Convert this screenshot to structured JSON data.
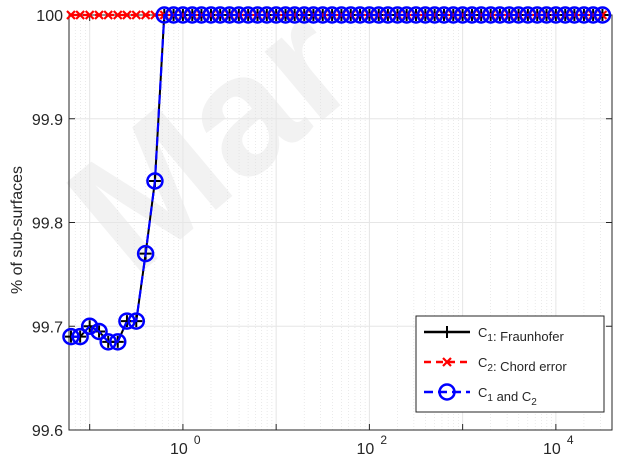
{
  "chart_data": {
    "type": "line",
    "ylabel": "% of sub-surfaces",
    "xscale": "log",
    "xlim": [
      0.06,
      40000
    ],
    "ylim": [
      99.6,
      100.0
    ],
    "yticks": [
      "99.6",
      "99.7",
      "99.8",
      "99.9",
      "100"
    ],
    "xticks": [
      {
        "base": "10",
        "exp": "0",
        "value": 1
      },
      {
        "base": "10",
        "exp": "2",
        "value": 100
      },
      {
        "base": "10",
        "exp": "4",
        "value": 10000
      }
    ],
    "grid": true,
    "minor_grid": true,
    "legend_position": "bottom-right",
    "x": [
      0.063,
      0.079,
      0.1,
      0.126,
      0.158,
      0.2,
      0.251,
      0.316,
      0.398,
      0.501,
      0.631,
      0.794,
      1,
      1.26,
      1.58,
      2,
      2.51,
      3.16,
      3.98,
      5.01,
      6.31,
      7.94,
      10,
      12.6,
      15.8,
      20,
      25.1,
      31.6,
      39.8,
      50.1,
      63.1,
      79.4,
      100,
      126,
      158,
      200,
      251,
      316,
      398,
      501,
      631,
      794,
      1000,
      1260,
      1580,
      2000,
      2510,
      3160,
      3980,
      5010,
      6310,
      7940,
      10000,
      12600,
      15800,
      20000,
      25100,
      31600
    ],
    "series": [
      {
        "name": "Fraunhofer",
        "color": "#000000",
        "marker": "plus",
        "values": [
          99.69,
          99.69,
          99.7,
          99.695,
          99.685,
          99.685,
          99.705,
          99.705,
          99.77,
          99.84,
          100,
          100,
          100,
          100,
          100,
          100,
          100,
          100,
          100,
          100,
          100,
          100,
          100,
          100,
          100,
          100,
          100,
          100,
          100,
          100,
          100,
          100,
          100,
          100,
          100,
          100,
          100,
          100,
          100,
          100,
          100,
          100,
          100,
          100,
          100,
          100,
          100,
          100,
          100,
          100,
          100,
          100,
          100,
          100,
          100,
          100,
          100,
          100
        ]
      },
      {
        "name": "Chord error",
        "color": "#ff0000",
        "marker": "x",
        "values": [
          100,
          100,
          100,
          100,
          100,
          100,
          100,
          100,
          100,
          100,
          100,
          100,
          100,
          100,
          100,
          100,
          100,
          100,
          100,
          100,
          100,
          100,
          100,
          100,
          100,
          100,
          100,
          100,
          100,
          100,
          100,
          100,
          100,
          100,
          100,
          100,
          100,
          100,
          100,
          100,
          100,
          100,
          100,
          100,
          100,
          100,
          100,
          100,
          100,
          100,
          100,
          100,
          100,
          100,
          100,
          100,
          100,
          100
        ]
      },
      {
        "name": "and",
        "color": "#0000ff",
        "marker": "circle",
        "values": [
          99.69,
          99.69,
          99.7,
          99.695,
          99.685,
          99.685,
          99.705,
          99.705,
          99.77,
          99.84,
          100,
          100,
          100,
          100,
          100,
          100,
          100,
          100,
          100,
          100,
          100,
          100,
          100,
          100,
          100,
          100,
          100,
          100,
          100,
          100,
          100,
          100,
          100,
          100,
          100,
          100,
          100,
          100,
          100,
          100,
          100,
          100,
          100,
          100,
          100,
          100,
          100,
          100,
          100,
          100,
          100,
          100,
          100,
          100,
          100,
          100,
          100,
          100
        ]
      }
    ],
    "legend": [
      {
        "pre": "C",
        "sub": "1",
        "post": ": Fraunhofer"
      },
      {
        "pre": "C",
        "sub": "2",
        "post": ": Chord error"
      },
      {
        "pre": "C",
        "sub": "1",
        "mid": " and C",
        "sub2": "2",
        "post": ""
      }
    ]
  }
}
